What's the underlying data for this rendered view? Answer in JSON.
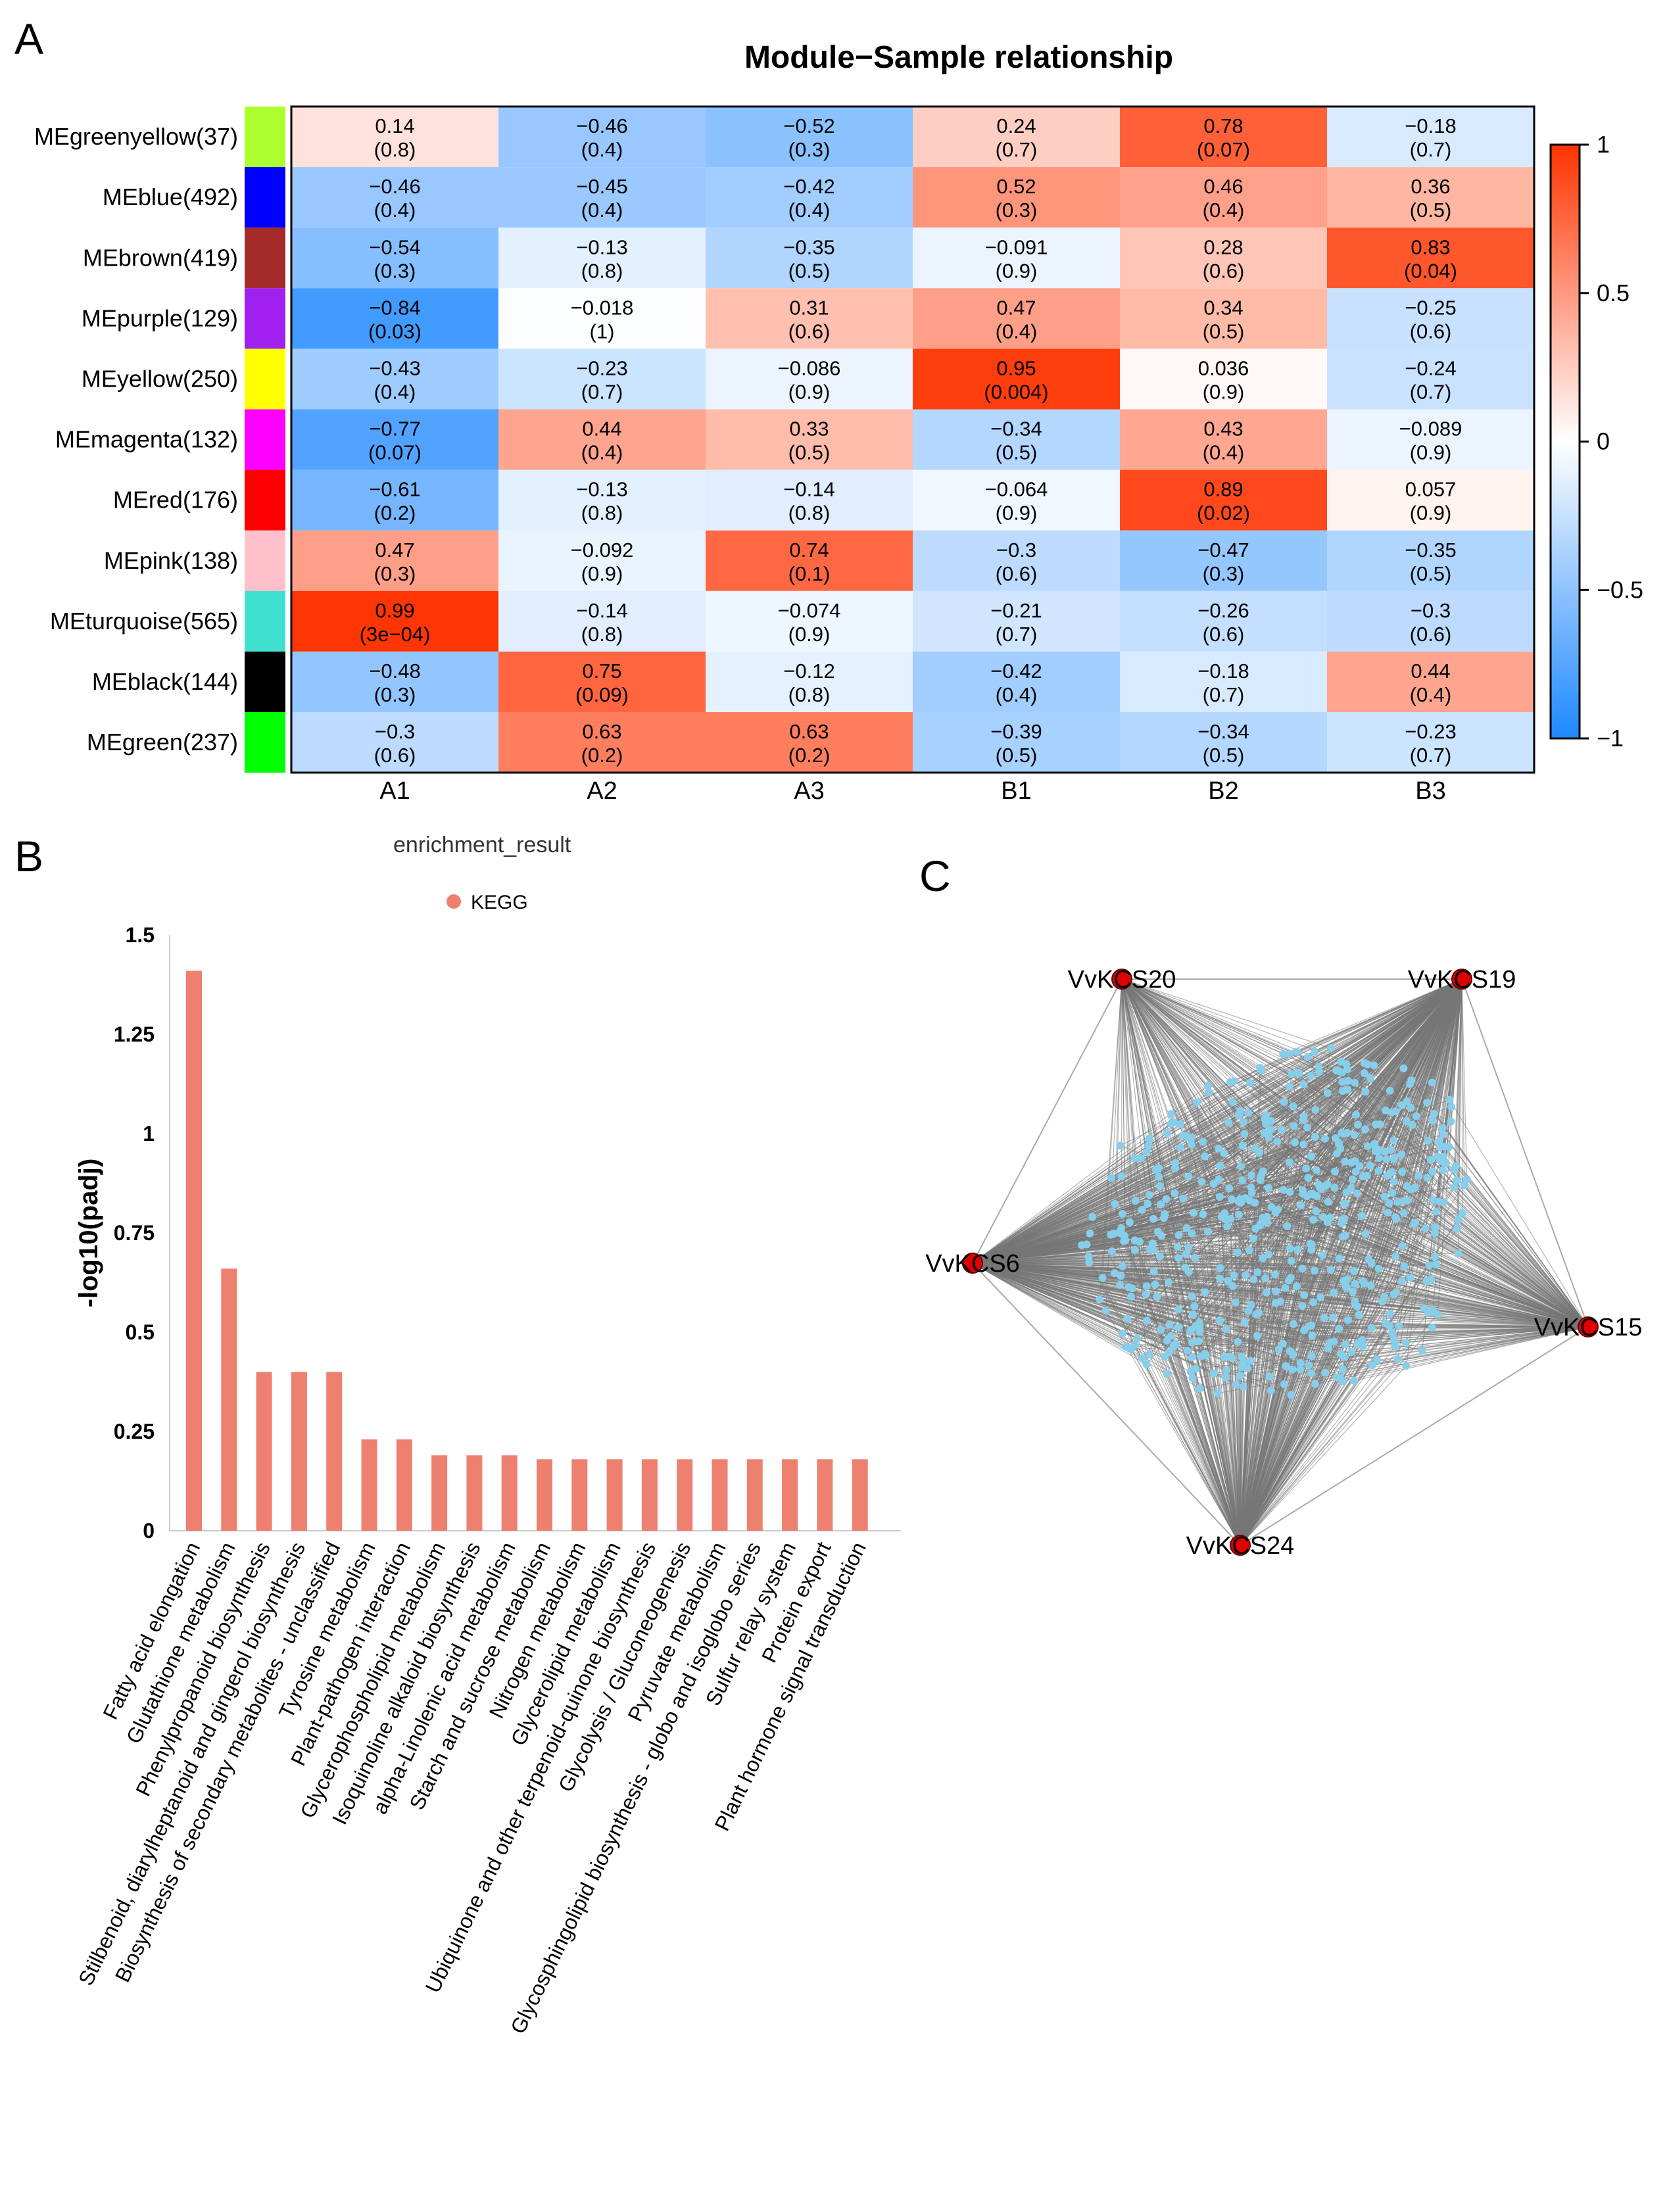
{
  "panels": {
    "a": "A",
    "b": "B",
    "c": "C"
  },
  "chart_data": [
    {
      "type": "heatmap",
      "title": "Module−Sample relationship",
      "columns": [
        "A1",
        "A2",
        "A3",
        "B1",
        "B2",
        "B3"
      ],
      "rows": [
        {
          "label": "MEgreenyellow(37)",
          "color": "#adff2f"
        },
        {
          "label": "MEblue(492)",
          "color": "#0000ff"
        },
        {
          "label": "MEbrown(419)",
          "color": "#a52a2a"
        },
        {
          "label": "MEpurple(129)",
          "color": "#a020f0"
        },
        {
          "label": "MEyellow(250)",
          "color": "#ffff00"
        },
        {
          "label": "MEmagenta(132)",
          "color": "#ff00ff"
        },
        {
          "label": "MEred(176)",
          "color": "#ff0000"
        },
        {
          "label": "MEpink(138)",
          "color": "#ffc0cb"
        },
        {
          "label": "MEturquoise(565)",
          "color": "#40e0d0"
        },
        {
          "label": "MEblack(144)",
          "color": "#000000"
        },
        {
          "label": "MEgreen(237)",
          "color": "#00ff00"
        }
      ],
      "values": [
        [
          0.14,
          -0.46,
          -0.52,
          0.24,
          0.78,
          -0.18
        ],
        [
          -0.46,
          -0.45,
          -0.42,
          0.52,
          0.46,
          0.36
        ],
        [
          -0.54,
          -0.13,
          -0.35,
          -0.091,
          0.28,
          0.83
        ],
        [
          -0.84,
          -0.018,
          0.31,
          0.47,
          0.34,
          -0.25
        ],
        [
          -0.43,
          -0.23,
          -0.086,
          0.95,
          0.036,
          -0.24
        ],
        [
          -0.77,
          0.44,
          0.33,
          -0.34,
          0.43,
          -0.089
        ],
        [
          -0.61,
          -0.13,
          -0.14,
          -0.064,
          0.89,
          0.057
        ],
        [
          0.47,
          -0.092,
          0.74,
          -0.3,
          -0.47,
          -0.35
        ],
        [
          0.99,
          -0.14,
          -0.074,
          -0.21,
          -0.26,
          -0.3
        ],
        [
          -0.48,
          0.75,
          -0.12,
          -0.42,
          -0.18,
          0.44
        ],
        [
          -0.3,
          0.63,
          0.63,
          -0.39,
          -0.34,
          -0.23
        ]
      ],
      "value_labels": [
        [
          "0.14",
          "−0.46",
          "−0.52",
          "0.24",
          "0.78",
          "−0.18"
        ],
        [
          "−0.46",
          "−0.45",
          "−0.42",
          "0.52",
          "0.46",
          "0.36"
        ],
        [
          "−0.54",
          "−0.13",
          "−0.35",
          "−0.091",
          "0.28",
          "0.83"
        ],
        [
          "−0.84",
          "−0.018",
          "0.31",
          "0.47",
          "0.34",
          "−0.25"
        ],
        [
          "−0.43",
          "−0.23",
          "−0.086",
          "0.95",
          "0.036",
          "−0.24"
        ],
        [
          "−0.77",
          "0.44",
          "0.33",
          "−0.34",
          "0.43",
          "−0.089"
        ],
        [
          "−0.61",
          "−0.13",
          "−0.14",
          "−0.064",
          "0.89",
          "0.057"
        ],
        [
          "0.47",
          "−0.092",
          "0.74",
          "−0.3",
          "−0.47",
          "−0.35"
        ],
        [
          "0.99",
          "−0.14",
          "−0.074",
          "−0.21",
          "−0.26",
          "−0.3"
        ],
        [
          "−0.48",
          "0.75",
          "−0.12",
          "−0.42",
          "−0.18",
          "0.44"
        ],
        [
          "−0.3",
          "0.63",
          "0.63",
          "−0.39",
          "−0.34",
          "−0.23"
        ]
      ],
      "pvalues": [
        [
          "(0.8)",
          "(0.4)",
          "(0.3)",
          "(0.7)",
          "(0.07)",
          "(0.7)"
        ],
        [
          "(0.4)",
          "(0.4)",
          "(0.4)",
          "(0.3)",
          "(0.4)",
          "(0.5)"
        ],
        [
          "(0.3)",
          "(0.8)",
          "(0.5)",
          "(0.9)",
          "(0.6)",
          "(0.04)"
        ],
        [
          "(0.03)",
          "(1)",
          "(0.6)",
          "(0.4)",
          "(0.5)",
          "(0.6)"
        ],
        [
          "(0.4)",
          "(0.7)",
          "(0.9)",
          "(0.004)",
          "(0.9)",
          "(0.7)"
        ],
        [
          "(0.07)",
          "(0.4)",
          "(0.5)",
          "(0.5)",
          "(0.4)",
          "(0.9)"
        ],
        [
          "(0.2)",
          "(0.8)",
          "(0.8)",
          "(0.9)",
          "(0.02)",
          "(0.9)"
        ],
        [
          "(0.3)",
          "(0.9)",
          "(0.1)",
          "(0.6)",
          "(0.3)",
          "(0.5)"
        ],
        [
          "(3e−04)",
          "(0.8)",
          "(0.9)",
          "(0.7)",
          "(0.6)",
          "(0.6)"
        ],
        [
          "(0.3)",
          "(0.09)",
          "(0.8)",
          "(0.4)",
          "(0.7)",
          "(0.4)"
        ],
        [
          "(0.6)",
          "(0.2)",
          "(0.2)",
          "(0.5)",
          "(0.5)",
          "(0.7)"
        ]
      ],
      "colorbar": {
        "range": [
          -1,
          1
        ],
        "ticks": [
          1,
          0.5,
          0,
          -0.5,
          -1
        ],
        "tick_labels": [
          "1",
          "0.5",
          "0",
          "−0.5",
          "−1"
        ],
        "low_color": "#1e88ff",
        "mid_color": "#ffffff",
        "high_color": "#ff3300"
      }
    },
    {
      "type": "bar",
      "legend_title": "enrichment_result",
      "legend_items": [
        {
          "name": "KEGG",
          "color": "#ee8070"
        }
      ],
      "ylabel": "-log10(padj)",
      "ylim": [
        0,
        1.5
      ],
      "yticks": [
        0,
        0.25,
        0.5,
        0.75,
        1,
        1.25,
        1.5
      ],
      "ytick_labels": [
        "0",
        "0.25",
        "0.5",
        "0.75",
        "1",
        "1.25",
        "1.5"
      ],
      "categories": [
        "Fatty acid elongation",
        "Glutathione metabolism",
        "Phenylpropanoid biosynthesis",
        "Stilbenoid, diarylheptanoid and gingerol biosynthesis",
        "Biosynthesis of secondary metabolites - unclassified",
        "Tyrosine metabolism",
        "Plant-pathogen interaction",
        "Glycerophospholipid metabolism",
        "Isoquinoline alkaloid biosynthesis",
        "alpha-Linolenic acid metabolism",
        "Starch and sucrose metabolism",
        "Nitrogen metabolism",
        "Glycerolipid metabolism",
        "Ubiquinone and other terpenoid-quinone biosynthesis",
        "Glycolysis / Gluconeogenesis",
        "Pyruvate metabolism",
        "Glycosphingolipid biosynthesis - globo and isoglobo series",
        "Sulfur relay system",
        "Protein export",
        "Plant hormone signal transduction"
      ],
      "values": [
        1.41,
        0.66,
        0.4,
        0.4,
        0.4,
        0.23,
        0.23,
        0.19,
        0.19,
        0.19,
        0.18,
        0.18,
        0.18,
        0.18,
        0.18,
        0.18,
        0.18,
        0.18,
        0.18,
        0.18
      ],
      "bar_color": "#ee8070"
    },
    {
      "type": "network",
      "hubs": [
        "VvKCS20",
        "VvKCS19",
        "VvKCS6",
        "VvKCS15",
        "VvKCS24"
      ],
      "hub_color": "#e00000",
      "node_color": "#87ceeb",
      "edge_color": "#777777"
    }
  ]
}
